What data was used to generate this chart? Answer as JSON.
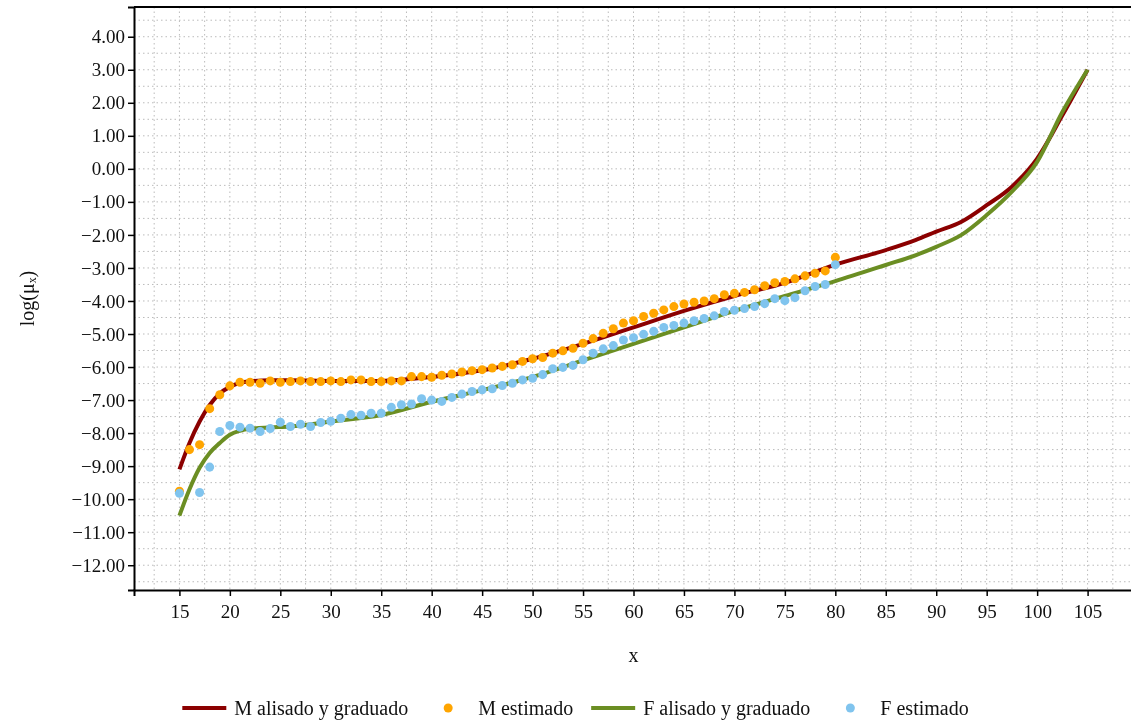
{
  "chart_data": {
    "type": "line",
    "xlabel": "x",
    "ylabel": "log(μₓ)",
    "xlim": [
      10.5,
      109.5
    ],
    "ylim": [
      -12.75,
      4.9
    ],
    "xticks": [
      15,
      20,
      25,
      30,
      35,
      40,
      45,
      50,
      55,
      60,
      65,
      70,
      75,
      80,
      85,
      90,
      95,
      100,
      105
    ],
    "yticks": [
      {
        "value": 4,
        "label": "4.00"
      },
      {
        "value": 3,
        "label": "3.00"
      },
      {
        "value": 2,
        "label": "2.00"
      },
      {
        "value": 1,
        "label": "1.00"
      },
      {
        "value": 0,
        "label": "0.00"
      },
      {
        "value": -1,
        "label": "−1.00"
      },
      {
        "value": -2,
        "label": "−2.00"
      },
      {
        "value": -3,
        "label": "−3.00"
      },
      {
        "value": -4,
        "label": "−4.00"
      },
      {
        "value": -5,
        "label": "−5.00"
      },
      {
        "value": -6,
        "label": "−6.00"
      },
      {
        "value": -7,
        "label": "−7.00"
      },
      {
        "value": -8,
        "label": "−8.00"
      },
      {
        "value": -9,
        "label": "−9.00"
      },
      {
        "value": -10,
        "label": "−10.00"
      },
      {
        "value": -11,
        "label": "−11.00"
      },
      {
        "value": -12,
        "label": "−12.00"
      }
    ],
    "grid": true,
    "legend": "bottom",
    "line_style": "solid",
    "series": [
      {
        "name": "M alisado y graduado",
        "color": "#8b0000",
        "x": [
          15,
          16,
          17,
          18,
          19,
          20,
          21,
          22,
          24,
          26,
          30,
          35,
          40,
          45,
          50,
          55,
          60,
          65,
          70,
          75,
          80,
          85,
          88,
          90,
          92.5,
          95,
          97.5,
          100,
          102.5,
          105
        ],
        "values": [
          -9.1,
          -8.3,
          -7.65,
          -7.15,
          -6.8,
          -6.6,
          -6.48,
          -6.43,
          -6.4,
          -6.4,
          -6.42,
          -6.42,
          -6.3,
          -6.1,
          -5.75,
          -5.3,
          -4.8,
          -4.3,
          -3.85,
          -3.45,
          -2.9,
          -2.46,
          -2.15,
          -1.9,
          -1.6,
          -1.1,
          -0.54,
          0.31,
          1.62,
          3.0
        ]
      },
      {
        "name": "M estimado",
        "type": "scatter",
        "marker": "circle",
        "color": "#ffa500",
        "x": [
          15,
          16,
          17,
          18,
          19,
          20,
          21,
          22,
          23,
          24,
          25,
          26,
          27,
          28,
          29,
          30,
          31,
          32,
          33,
          34,
          35,
          36,
          37,
          38,
          39,
          40,
          41,
          42,
          43,
          44,
          45,
          46,
          47,
          48,
          49,
          50,
          51,
          52,
          53,
          54,
          55,
          56,
          57,
          58,
          59,
          60,
          61,
          62,
          63,
          64,
          65,
          66,
          67,
          68,
          69,
          70,
          71,
          72,
          73,
          74,
          75,
          76,
          77,
          78,
          79,
          80
        ],
        "values": [
          -9.76,
          -8.5,
          -8.35,
          -7.26,
          -6.84,
          -6.57,
          -6.46,
          -6.46,
          -6.49,
          -6.42,
          -6.46,
          -6.44,
          -6.42,
          -6.44,
          -6.44,
          -6.42,
          -6.44,
          -6.39,
          -6.39,
          -6.44,
          -6.44,
          -6.42,
          -6.42,
          -6.29,
          -6.29,
          -6.31,
          -6.25,
          -6.21,
          -6.15,
          -6.11,
          -6.08,
          -6.03,
          -5.98,
          -5.93,
          -5.83,
          -5.75,
          -5.71,
          -5.58,
          -5.51,
          -5.43,
          -5.28,
          -5.14,
          -4.98,
          -4.84,
          -4.67,
          -4.6,
          -4.47,
          -4.37,
          -4.27,
          -4.17,
          -4.09,
          -4.04,
          -4.0,
          -3.93,
          -3.81,
          -3.77,
          -3.74,
          -3.66,
          -3.54,
          -3.45,
          -3.41,
          -3.33,
          -3.24,
          -3.16,
          -3.09,
          -2.68
        ]
      },
      {
        "name": "F alisado y graduado",
        "color": "#6b8e23",
        "x": [
          15,
          16,
          17,
          18,
          19,
          20,
          21,
          22,
          24,
          26,
          30,
          35,
          40,
          45,
          50,
          55,
          60,
          65,
          70,
          75,
          80,
          85,
          88,
          90,
          92.5,
          95,
          97.5,
          100,
          102.5,
          105
        ],
        "values": [
          -10.5,
          -9.7,
          -9.05,
          -8.6,
          -8.3,
          -8.05,
          -7.93,
          -7.87,
          -7.83,
          -7.8,
          -7.65,
          -7.45,
          -7.05,
          -6.7,
          -6.3,
          -5.8,
          -5.3,
          -4.8,
          -4.3,
          -3.85,
          -3.4,
          -2.91,
          -2.61,
          -2.36,
          -2.0,
          -1.4,
          -0.69,
          0.21,
          1.72,
          3.0
        ]
      },
      {
        "name": "F estimado",
        "type": "scatter",
        "marker": "circle",
        "color": "#80c4ee",
        "x": [
          15,
          16,
          17,
          18,
          19,
          20,
          21,
          22,
          23,
          24,
          25,
          26,
          27,
          28,
          29,
          30,
          31,
          32,
          33,
          34,
          35,
          36,
          37,
          38,
          39,
          40,
          41,
          42,
          43,
          44,
          45,
          46,
          47,
          48,
          49,
          50,
          51,
          52,
          53,
          54,
          55,
          56,
          57,
          58,
          59,
          60,
          61,
          62,
          63,
          64,
          65,
          66,
          67,
          68,
          69,
          70,
          71,
          72,
          73,
          74,
          75,
          76,
          77,
          78,
          79,
          80
        ],
        "values": [
          -9.82,
          null,
          -9.8,
          -9.03,
          -7.95,
          -7.77,
          -7.82,
          -7.85,
          -7.95,
          -7.86,
          -7.67,
          -7.8,
          -7.73,
          -7.8,
          -7.68,
          -7.64,
          -7.55,
          -7.44,
          -7.46,
          -7.4,
          -7.4,
          -7.22,
          -7.14,
          -7.12,
          -6.96,
          -7.0,
          -7.04,
          -6.92,
          -6.82,
          -6.74,
          -6.69,
          -6.66,
          -6.56,
          -6.49,
          -6.39,
          -6.34,
          -6.23,
          -6.05,
          -6.01,
          -5.95,
          -5.78,
          -5.58,
          -5.45,
          -5.35,
          -5.18,
          -5.11,
          -5.01,
          -4.92,
          -4.8,
          -4.74,
          -4.67,
          -4.6,
          -4.53,
          -4.45,
          -4.32,
          -4.28,
          -4.23,
          -4.17,
          -4.08,
          -3.93,
          -3.99,
          -3.9,
          -3.69,
          -3.56,
          -3.5,
          -2.9
        ]
      }
    ]
  }
}
